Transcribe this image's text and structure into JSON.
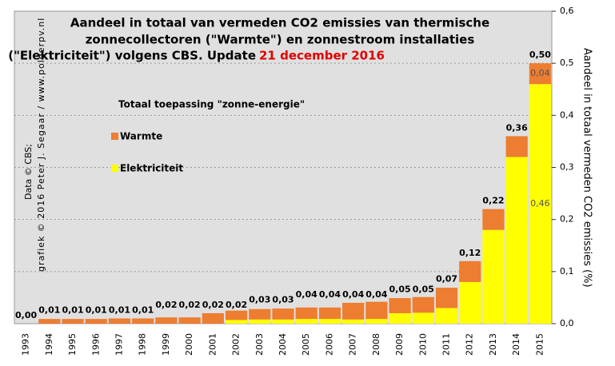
{
  "chart_data": {
    "type": "stacked_bar",
    "title_lines": [
      "Aandeel in totaal van vermeden CO2 emissies  van thermische",
      "zonnecollectoren (\"Warmte\") en zonnestroom installaties",
      "(\"Elektriciteit\")  volgens CBS. Update"
    ],
    "title_date": "21 december 2016",
    "credit_lines": [
      "Data © CBS;",
      "grafiek © 2016 Peter J. Segaar / www.polderpv.nl"
    ],
    "y_label": "Aandeel in totaal vermeden CO2 emissies (%)",
    "legend_title": "Totaal toepassing \"zonne-energie\"",
    "categories": [
      "1993",
      "1994",
      "1995",
      "1996",
      "1997",
      "1998",
      "1999",
      "2000",
      "2001",
      "2002",
      "2003",
      "2004",
      "2005",
      "2006",
      "2007",
      "2008",
      "2009",
      "2010",
      "2011",
      "2012",
      "2013",
      "2014",
      "2015"
    ],
    "series": [
      {
        "name": "Elektriciteit",
        "color": "#ffff00",
        "values": [
          0,
          0,
          0,
          0,
          0,
          0,
          0,
          0,
          0,
          0.007,
          0.008,
          0.008,
          0.009,
          0.009,
          0.008,
          0.009,
          0.02,
          0.021,
          0.03,
          0.08,
          0.18,
          0.32,
          0.46
        ],
        "value_labels": [
          null,
          null,
          null,
          null,
          null,
          null,
          null,
          null,
          null,
          null,
          null,
          null,
          null,
          null,
          null,
          null,
          null,
          null,
          null,
          null,
          null,
          null,
          "0,46"
        ]
      },
      {
        "name": "Warmte",
        "color": "#ed7d31",
        "values": [
          0,
          0.009,
          0.009,
          0.009,
          0.01,
          0.01,
          0.012,
          0.012,
          0.02,
          0.018,
          0.02,
          0.021,
          0.022,
          0.022,
          0.032,
          0.033,
          0.029,
          0.03,
          0.039,
          0.04,
          0.04,
          0.04,
          0.04
        ],
        "value_labels": [
          null,
          null,
          null,
          null,
          null,
          null,
          null,
          null,
          null,
          null,
          null,
          null,
          null,
          null,
          null,
          null,
          null,
          null,
          null,
          null,
          null,
          null,
          "0,04"
        ]
      }
    ],
    "totals": {
      "values": [
        0,
        0.01,
        0.01,
        0.01,
        0.01,
        0.01,
        0.02,
        0.02,
        0.02,
        0.02,
        0.03,
        0.03,
        0.04,
        0.04,
        0.04,
        0.04,
        0.05,
        0.05,
        0.07,
        0.12,
        0.22,
        0.36,
        0.5
      ],
      "value_labels": [
        "0,00",
        "0,01",
        "0,01",
        "0,01",
        "0,01",
        "0,01",
        "0,02",
        "0,02",
        "0,02",
        "0,02",
        "0,03",
        "0,03",
        "0,04",
        "0,04",
        "0,04",
        "0,04",
        "0,05",
        "0,05",
        "0,07",
        "0,12",
        "0,22",
        "0,36",
        "0,50"
      ]
    },
    "ylim": [
      0,
      0.6
    ],
    "yticks": [
      {
        "value": 0,
        "label": "0,0"
      },
      {
        "value": 0.1,
        "label": "0,1"
      },
      {
        "value": 0.2,
        "label": "0,2"
      },
      {
        "value": 0.3,
        "label": "0,3"
      },
      {
        "value": 0.4,
        "label": "0,4"
      },
      {
        "value": 0.5,
        "label": "0,5"
      },
      {
        "value": 0.6,
        "label": "0,6"
      }
    ],
    "grid": true
  }
}
